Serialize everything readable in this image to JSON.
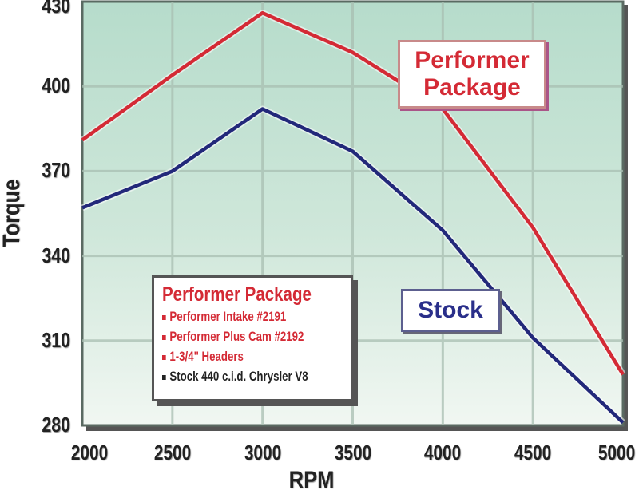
{
  "chart_data": {
    "type": "line",
    "title": "",
    "xlabel": "RPM",
    "ylabel": "Torque",
    "x": [
      2000,
      2500,
      3000,
      3500,
      4000,
      4500,
      5000
    ],
    "xlim": [
      2000,
      5000
    ],
    "ylim": [
      280,
      430
    ],
    "xticks": [
      "2000",
      "2500",
      "3000",
      "3500",
      "4000",
      "4500",
      "5000"
    ],
    "yticks": [
      "430",
      "400",
      "370",
      "340",
      "310",
      "280"
    ],
    "grid": true,
    "series": [
      {
        "name": "Performer Package",
        "color": "#d42a35",
        "values": [
          381,
          404,
          426,
          412,
          392,
          350,
          298
        ]
      },
      {
        "name": "Stock",
        "color": "#22287a",
        "values": [
          357,
          370,
          392,
          377,
          349,
          311,
          281
        ]
      }
    ],
    "annotations": [
      "Performer Package",
      "Stock"
    ],
    "legend": {
      "title": "Performer Package",
      "items": [
        {
          "text": "Performer Intake #2191",
          "color": "#d42a35"
        },
        {
          "text": "Performer Plus Cam #2192",
          "color": "#d42a35"
        },
        {
          "text": "1-3/4\" Headers",
          "color": "#d42a35"
        },
        {
          "text": "Stock 440 c.i.d. Chrysler V8",
          "color": "#222222"
        }
      ],
      "position": "lower-left inside plot"
    }
  },
  "labels": {
    "callout_performer_line1": "Performer",
    "callout_performer_line2": "Package",
    "callout_stock": "Stock"
  }
}
